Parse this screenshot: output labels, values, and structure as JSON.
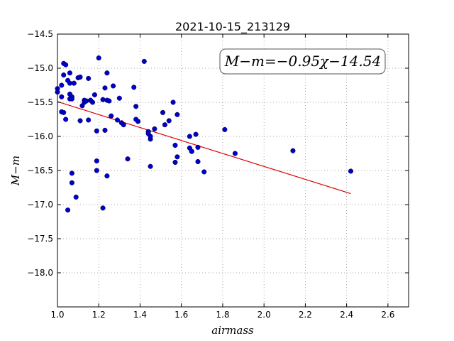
{
  "chart_data": {
    "type": "scatter",
    "title": "2021-10-15_213129",
    "xlabel": "airmass",
    "ylabel": "M−m",
    "xlim": [
      1.0,
      2.7
    ],
    "ylim": [
      -18.5,
      -14.5
    ],
    "y_inverted": true,
    "grid": true,
    "x_ticks": [
      1.0,
      1.2,
      1.4,
      1.6,
      1.8,
      2.0,
      2.2,
      2.4,
      2.6
    ],
    "x_tick_labels": [
      "1.0",
      "1.2",
      "1.4",
      "1.6",
      "1.8",
      "2.0",
      "2.2",
      "2.4",
      "2.6"
    ],
    "y_ticks": [
      -14.5,
      -15.0,
      -15.5,
      -16.0,
      -16.5,
      -17.0,
      -17.5,
      -18.0
    ],
    "y_tick_labels": [
      "−14.5",
      "−15.0",
      "−15.5",
      "−16.0",
      "−16.5",
      "−17.0",
      "−17.5",
      "−18.0"
    ],
    "annotation": "M−m=−0.95χ−14.54",
    "fit": {
      "slope": -0.95,
      "intercept": -14.54,
      "x_range": [
        1.0,
        2.42
      ]
    },
    "colors": {
      "points": "#0000cc",
      "fit": "#dd0000",
      "grid": "#888888"
    },
    "points": [
      [
        1.0,
        -15.3
      ],
      [
        1.0,
        -15.35
      ],
      [
        1.02,
        -15.25
      ],
      [
        1.02,
        -15.42
      ],
      [
        1.02,
        -15.64
      ],
      [
        1.03,
        -15.65
      ],
      [
        1.03,
        -15.1
      ],
      [
        1.03,
        -14.93
      ],
      [
        1.04,
        -14.95
      ],
      [
        1.04,
        -15.75
      ],
      [
        1.05,
        -17.08
      ],
      [
        1.05,
        -15.18
      ],
      [
        1.06,
        -15.07
      ],
      [
        1.06,
        -15.22
      ],
      [
        1.06,
        -15.38
      ],
      [
        1.06,
        -15.45
      ],
      [
        1.07,
        -15.42
      ],
      [
        1.07,
        -15.45
      ],
      [
        1.07,
        -16.68
      ],
      [
        1.07,
        -16.54
      ],
      [
        1.08,
        -15.22
      ],
      [
        1.09,
        -16.89
      ],
      [
        1.1,
        -15.14
      ],
      [
        1.11,
        -15.13
      ],
      [
        1.11,
        -15.77
      ],
      [
        1.12,
        -15.55
      ],
      [
        1.13,
        -15.47
      ],
      [
        1.13,
        -15.5
      ],
      [
        1.14,
        -15.48
      ],
      [
        1.15,
        -15.15
      ],
      [
        1.15,
        -15.76
      ],
      [
        1.16,
        -15.47
      ],
      [
        1.17,
        -15.5
      ],
      [
        1.18,
        -15.39
      ],
      [
        1.19,
        -16.36
      ],
      [
        1.19,
        -16.5
      ],
      [
        1.19,
        -15.92
      ],
      [
        1.2,
        -14.85
      ],
      [
        1.22,
        -17.05
      ],
      [
        1.22,
        -15.46
      ],
      [
        1.23,
        -15.29
      ],
      [
        1.23,
        -15.91
      ],
      [
        1.24,
        -15.47
      ],
      [
        1.24,
        -15.07
      ],
      [
        1.24,
        -16.58
      ],
      [
        1.25,
        -15.48
      ],
      [
        1.26,
        -15.7
      ],
      [
        1.27,
        -15.26
      ],
      [
        1.29,
        -15.76
      ],
      [
        1.3,
        -15.44
      ],
      [
        1.31,
        -15.8
      ],
      [
        1.32,
        -15.83
      ],
      [
        1.34,
        -16.33
      ],
      [
        1.37,
        -15.28
      ],
      [
        1.38,
        -15.56
      ],
      [
        1.38,
        -15.75
      ],
      [
        1.39,
        -15.78
      ],
      [
        1.42,
        -14.9
      ],
      [
        1.44,
        -15.93
      ],
      [
        1.44,
        -15.96
      ],
      [
        1.45,
        -16.04
      ],
      [
        1.45,
        -16.0
      ],
      [
        1.45,
        -16.44
      ],
      [
        1.47,
        -15.89
      ],
      [
        1.51,
        -15.65
      ],
      [
        1.52,
        -15.83
      ],
      [
        1.54,
        -15.77
      ],
      [
        1.56,
        -15.5
      ],
      [
        1.57,
        -16.13
      ],
      [
        1.57,
        -16.38
      ],
      [
        1.58,
        -16.3
      ],
      [
        1.58,
        -15.68
      ],
      [
        1.64,
        -16.17
      ],
      [
        1.64,
        -16.0
      ],
      [
        1.65,
        -16.22
      ],
      [
        1.65,
        -16.22
      ],
      [
        1.67,
        -15.97
      ],
      [
        1.68,
        -16.37
      ],
      [
        1.68,
        -16.16
      ],
      [
        1.71,
        -16.52
      ],
      [
        1.81,
        -15.9
      ],
      [
        1.86,
        -16.25
      ],
      [
        2.14,
        -16.21
      ],
      [
        2.42,
        -16.51
      ]
    ]
  }
}
